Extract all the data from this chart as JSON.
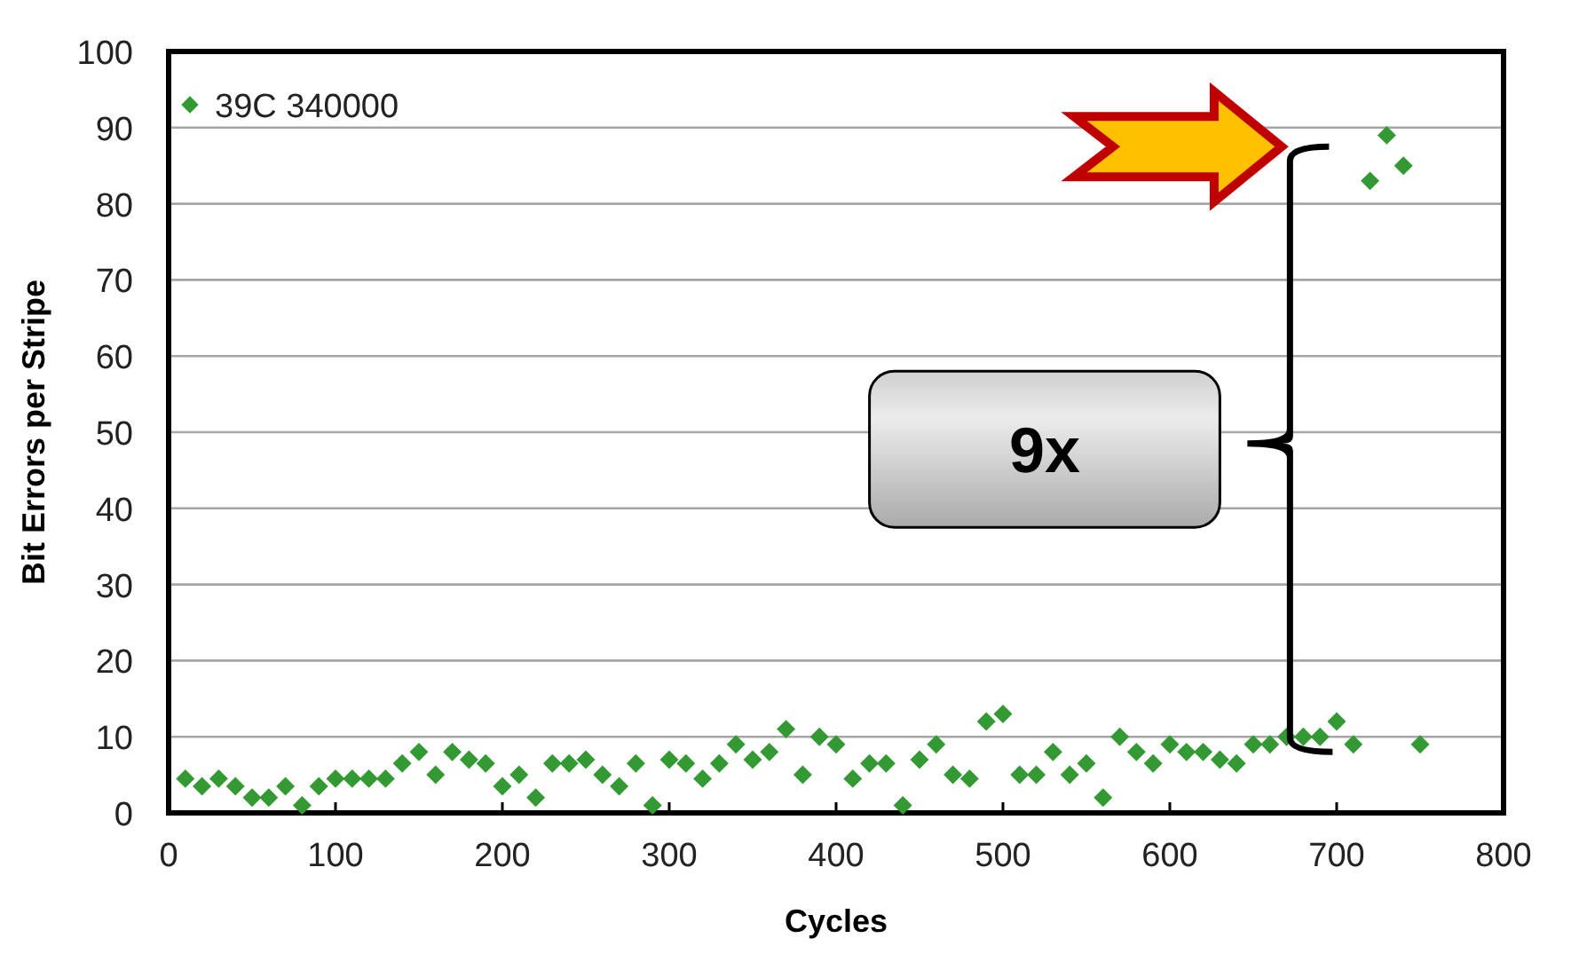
{
  "chart_data": {
    "type": "scatter",
    "xlabel": "Cycles",
    "ylabel": "Bit Errors per Stripe",
    "x": [
      10,
      20,
      30,
      40,
      50,
      60,
      70,
      80,
      90,
      100,
      110,
      120,
      130,
      140,
      150,
      160,
      170,
      180,
      190,
      200,
      210,
      220,
      230,
      240,
      250,
      260,
      270,
      280,
      290,
      300,
      310,
      320,
      330,
      340,
      350,
      360,
      370,
      380,
      390,
      400,
      410,
      420,
      430,
      440,
      450,
      460,
      470,
      480,
      490,
      500,
      510,
      520,
      530,
      540,
      550,
      560,
      570,
      580,
      590,
      600,
      610,
      620,
      630,
      640,
      650,
      660,
      670,
      680,
      690,
      700,
      710,
      720,
      730,
      740,
      750
    ],
    "series": [
      {
        "name": "39C 340000",
        "color": "#339933",
        "values": [
          4.5,
          3.5,
          4.5,
          3.5,
          2,
          2,
          3.5,
          1,
          3.5,
          4.5,
          4.5,
          4.5,
          4.5,
          6.5,
          8,
          5,
          8,
          7,
          6.5,
          3.5,
          5,
          2,
          6.5,
          6.5,
          7,
          5,
          3.5,
          6.5,
          1,
          7,
          6.5,
          4.5,
          6.5,
          9,
          7,
          8,
          11,
          5,
          10,
          9,
          4.5,
          6.5,
          6.5,
          1,
          7,
          9,
          5,
          4.5,
          12,
          13,
          5,
          5,
          8,
          5,
          6.5,
          2,
          10,
          8,
          6.5,
          9,
          8,
          8,
          7,
          6.5,
          9,
          9,
          10,
          10,
          10,
          12,
          9,
          83,
          89,
          85,
          9
        ]
      }
    ],
    "xlim": [
      0,
      800
    ],
    "xticks": [
      0,
      100,
      200,
      300,
      400,
      500,
      600,
      700,
      800
    ],
    "ylim": [
      0,
      100
    ],
    "yticks": [
      0,
      10,
      20,
      30,
      40,
      50,
      60,
      70,
      80,
      90,
      100
    ],
    "grid": "y",
    "legend": "top left",
    "marker": "diamond",
    "annotations": [
      "9x"
    ]
  }
}
